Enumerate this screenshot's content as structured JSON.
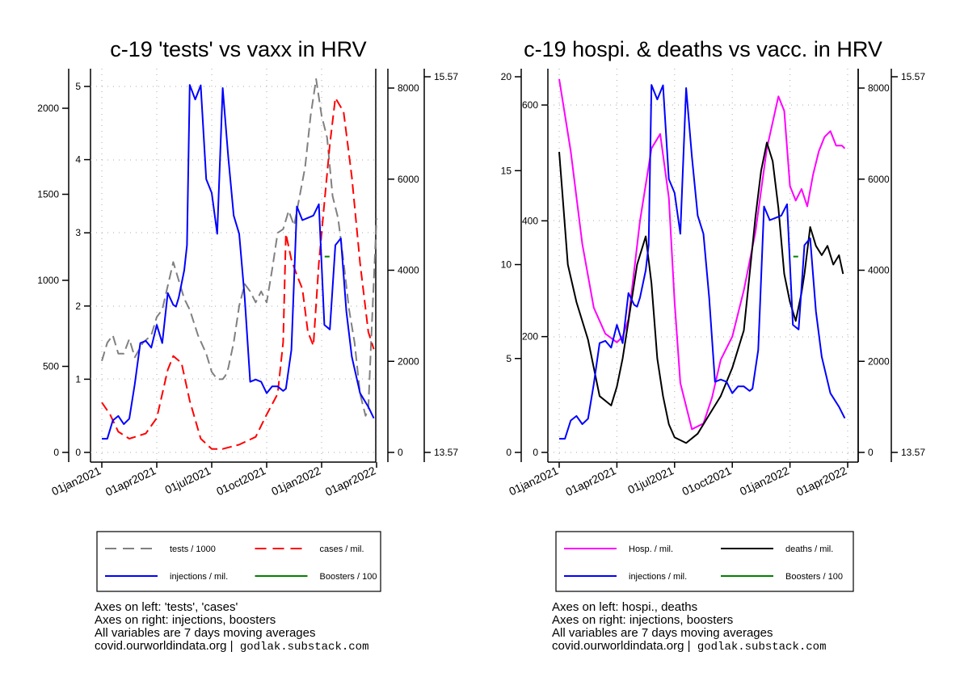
{
  "chart_data": [
    {
      "type": "line",
      "title": "c-19 'tests' vs vaxx in HRV",
      "x_ticks": [
        "01jan2021",
        "01apr2021",
        "01jul2021",
        "01oct2021",
        "01jan2022",
        "01apr2022"
      ],
      "axes": {
        "left_outer": {
          "ticks": [
            "0",
            "500",
            "1000",
            "1500",
            "2000"
          ],
          "range": [
            0,
            2000
          ]
        },
        "left_inner": {
          "ticks": [
            "0",
            "1",
            "2",
            "3",
            "4",
            "5"
          ],
          "range": [
            0,
            5
          ]
        },
        "right_inner": {
          "ticks": [
            "0",
            "2000",
            "4000",
            "6000",
            "8000"
          ],
          "range": [
            0,
            8000
          ]
        },
        "right_outer": {
          "ticks": [
            "13.57",
            "15.57"
          ],
          "range": [
            13.57,
            15.57
          ]
        }
      },
      "series": [
        {
          "name": "tests / 1000",
          "color": "#808080",
          "dash": true,
          "axis": "left_inner",
          "x": [
            0,
            0.1,
            0.2,
            0.3,
            0.4,
            0.5,
            0.6,
            0.75,
            0.9,
            1.0,
            1.1,
            1.3,
            1.5,
            1.6,
            1.75,
            1.9,
            2.0,
            2.1,
            2.2,
            2.25,
            2.3,
            2.4,
            2.5,
            2.6,
            2.7,
            2.8,
            2.9,
            3.0,
            3.1,
            3.2,
            3.3,
            3.4,
            3.5,
            3.6,
            3.7,
            3.8,
            3.9,
            4.0,
            4.1,
            4.2,
            4.3,
            4.4,
            4.5,
            4.6,
            4.7,
            4.8,
            4.85,
            4.9,
            5.0
          ],
          "values": [
            1.25,
            1.5,
            1.6,
            1.35,
            1.35,
            1.55,
            1.3,
            1.5,
            1.6,
            1.85,
            1.95,
            2.6,
            2.1,
            1.95,
            1.6,
            1.35,
            1.1,
            1.0,
            1.0,
            1.05,
            1.15,
            1.5,
            2.0,
            2.3,
            2.2,
            2.05,
            2.2,
            2.05,
            2.5,
            3.0,
            3.05,
            3.3,
            3.1,
            3.5,
            3.9,
            4.6,
            5.1,
            4.6,
            4.3,
            3.5,
            3.2,
            2.6,
            1.95,
            1.5,
            0.8,
            0.5,
            0.6,
            1.5,
            3.2
          ]
        },
        {
          "name": "cases / mil.",
          "color": "#ff0000",
          "dash": true,
          "axis": "left_outer",
          "x": [
            0,
            0.15,
            0.3,
            0.5,
            0.8,
            1.0,
            1.2,
            1.3,
            1.45,
            1.6,
            1.8,
            2.0,
            2.2,
            2.5,
            2.8,
            3.0,
            3.2,
            3.3,
            3.35,
            3.45,
            3.55,
            3.65,
            3.75,
            3.85,
            3.95,
            4.05,
            4.15,
            4.25,
            4.4,
            4.55,
            4.7,
            4.85,
            4.95
          ],
          "values": [
            290,
            220,
            120,
            80,
            110,
            200,
            480,
            560,
            520,
            300,
            80,
            20,
            20,
            45,
            90,
            220,
            340,
            640,
            1270,
            1120,
            1030,
            950,
            700,
            620,
            1100,
            1450,
            1790,
            2060,
            1980,
            1600,
            1100,
            700,
            600
          ]
        },
        {
          "name": "injections / mil.",
          "color": "#0000ff",
          "dash": false,
          "axis": "right_inner",
          "x": [
            0,
            0.1,
            0.2,
            0.3,
            0.4,
            0.5,
            0.6,
            0.7,
            0.8,
            0.9,
            1.0,
            1.1,
            1.2,
            1.3,
            1.35,
            1.4,
            1.5,
            1.55,
            1.6,
            1.7,
            1.8,
            1.9,
            2.0,
            2.1,
            2.2,
            2.3,
            2.4,
            2.5,
            2.6,
            2.7,
            2.8,
            2.9,
            3.0,
            3.1,
            3.2,
            3.3,
            3.35,
            3.45,
            3.55,
            3.65,
            3.75,
            3.85,
            3.95,
            4.05,
            4.15,
            4.25,
            4.35,
            4.45,
            4.55,
            4.7,
            4.85,
            4.95
          ],
          "values": [
            300,
            300,
            700,
            800,
            620,
            740,
            1500,
            2400,
            2450,
            2300,
            2800,
            2400,
            3500,
            3240,
            3200,
            3400,
            4000,
            4550,
            8070,
            7750,
            8060,
            6000,
            5700,
            4800,
            8000,
            6500,
            5200,
            4800,
            3400,
            1550,
            1600,
            1550,
            1300,
            1450,
            1450,
            1350,
            1400,
            2250,
            5400,
            5100,
            5150,
            5200,
            5450,
            2800,
            2700,
            4550,
            4700,
            3100,
            2100,
            1300,
            1000,
            750
          ]
        }
      ]
    },
    {
      "type": "line",
      "title": "c-19 hospi. & deaths vs vacc. in HRV",
      "x_ticks": [
        "01jan2021",
        "01apr2021",
        "01jul2021",
        "01oct2021",
        "01jan2022",
        "01apr2022"
      ],
      "axes": {
        "left_outer": {
          "ticks": [
            "0",
            "5",
            "10",
            "15",
            "20"
          ],
          "range": [
            0,
            20
          ]
        },
        "left_inner": {
          "ticks": [
            "0",
            "200",
            "400",
            "600"
          ],
          "range": [
            0,
            600
          ]
        },
        "right_inner": {
          "ticks": [
            "0",
            "2000",
            "4000",
            "6000",
            "8000"
          ],
          "range": [
            0,
            8000
          ]
        },
        "right_outer": {
          "ticks": [
            "13.57",
            "15.57"
          ],
          "range": [
            13.57,
            15.57
          ]
        }
      },
      "series": [
        {
          "name": "Hosp. / mil.",
          "color": "#ff00ff",
          "dash": false,
          "axis": "left_inner",
          "x": [
            0,
            0.2,
            0.4,
            0.6,
            0.8,
            1.0,
            1.1,
            1.2,
            1.4,
            1.6,
            1.75,
            1.9,
            2.0,
            2.1,
            2.3,
            2.5,
            2.65,
            2.8,
            3.0,
            3.2,
            3.4,
            3.6,
            3.8,
            3.9,
            4.0,
            4.1,
            4.2,
            4.3,
            4.4,
            4.5,
            4.6,
            4.7,
            4.8,
            4.9,
            4.95
          ],
          "values": [
            645,
            520,
            360,
            250,
            205,
            190,
            200,
            230,
            400,
            525,
            550,
            440,
            260,
            120,
            40,
            50,
            95,
            160,
            200,
            280,
            380,
            525,
            615,
            590,
            460,
            435,
            455,
            425,
            480,
            520,
            545,
            555,
            530,
            530,
            525
          ]
        },
        {
          "name": "deaths / mil.",
          "color": "#000000",
          "dash": false,
          "axis": "left_outer",
          "x": [
            0,
            0.05,
            0.15,
            0.3,
            0.5,
            0.7,
            0.9,
            1.0,
            1.1,
            1.2,
            1.35,
            1.5,
            1.6,
            1.7,
            1.8,
            1.9,
            2.0,
            2.2,
            2.4,
            2.6,
            2.8,
            3.0,
            3.2,
            3.4,
            3.5,
            3.6,
            3.7,
            3.8,
            3.9,
            4.0,
            4.1,
            4.2,
            4.25,
            4.35,
            4.45,
            4.55,
            4.65,
            4.75,
            4.85,
            4.92
          ],
          "values": [
            16.0,
            14.0,
            10.0,
            8.0,
            6.0,
            3.0,
            2.5,
            3.5,
            5.0,
            7.0,
            10.0,
            11.5,
            9.0,
            5.0,
            3.0,
            1.5,
            0.8,
            0.5,
            1.0,
            2.0,
            3.0,
            4.5,
            6.5,
            12.5,
            15.0,
            16.5,
            15.5,
            13.0,
            9.5,
            8.0,
            7.0,
            8.5,
            9.5,
            12.0,
            11.0,
            10.5,
            11.0,
            10.0,
            10.5,
            9.5
          ]
        },
        {
          "name": "injections / mil.",
          "color": "#0000ff",
          "dash": false,
          "axis": "right_inner",
          "x": [
            0,
            0.1,
            0.2,
            0.3,
            0.4,
            0.5,
            0.6,
            0.7,
            0.8,
            0.9,
            1.0,
            1.1,
            1.2,
            1.3,
            1.35,
            1.4,
            1.5,
            1.55,
            1.6,
            1.7,
            1.8,
            1.9,
            2.0,
            2.1,
            2.2,
            2.3,
            2.4,
            2.5,
            2.6,
            2.7,
            2.8,
            2.9,
            3.0,
            3.1,
            3.2,
            3.3,
            3.35,
            3.45,
            3.55,
            3.65,
            3.75,
            3.85,
            3.95,
            4.05,
            4.15,
            4.25,
            4.35,
            4.45,
            4.55,
            4.7,
            4.85,
            4.95
          ],
          "values": [
            300,
            300,
            700,
            800,
            620,
            740,
            1500,
            2400,
            2450,
            2300,
            2800,
            2400,
            3500,
            3240,
            3200,
            3400,
            4000,
            4550,
            8070,
            7750,
            8060,
            6000,
            5700,
            4800,
            8000,
            6500,
            5200,
            4800,
            3400,
            1550,
            1600,
            1550,
            1300,
            1450,
            1450,
            1350,
            1400,
            2250,
            5400,
            5100,
            5150,
            5200,
            5450,
            2800,
            2700,
            4550,
            4700,
            3100,
            2100,
            1300,
            1000,
            750
          ]
        }
      ]
    }
  ],
  "legends": [
    {
      "items": [
        {
          "label": "tests / 1000",
          "color": "#808080",
          "dash": true
        },
        {
          "label": "cases / mil.",
          "color": "#ff0000",
          "dash": true
        },
        {
          "label": "injections / mil.",
          "color": "#0000ff",
          "dash": false
        },
        {
          "label": "Boosters / 100",
          "color": "#008000",
          "dash": false
        }
      ]
    },
    {
      "items": [
        {
          "label": "Hosp. / mil.",
          "color": "#ff00ff",
          "dash": false
        },
        {
          "label": "deaths / mil.",
          "color": "#000000",
          "dash": false
        },
        {
          "label": "injections / mil.",
          "color": "#0000ff",
          "dash": false
        },
        {
          "label": "Boosters / 100",
          "color": "#008000",
          "dash": false
        }
      ]
    }
  ],
  "notes": [
    {
      "lines": [
        "Axes on left: 'tests', 'cases'",
        "Axes on right: injections, boosters",
        "All variables are 7 days moving averages"
      ],
      "source": "covid.ourworldindata.org |",
      "site": "godlak.substack.com"
    },
    {
      "lines": [
        "Axes on left: hospi., deaths",
        "Axes on right: injections, boosters",
        "All variables are 7 days moving averages"
      ],
      "source": "covid.ourworldindata.org |",
      "site": "godlak.substack.com"
    }
  ]
}
